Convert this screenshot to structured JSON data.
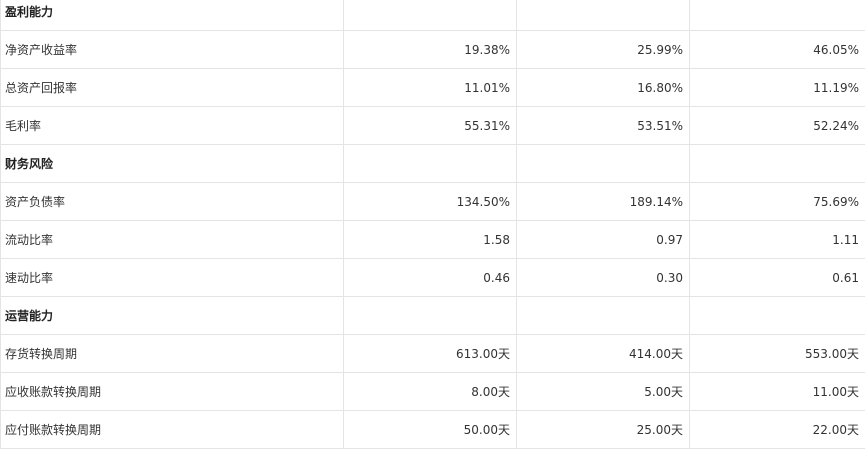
{
  "sections": [
    {
      "title": "盈利能力",
      "rows": [
        {
          "label": "净资产收益率",
          "values": [
            "19.38%",
            "25.99%",
            "46.05%"
          ]
        },
        {
          "label": "总资产回报率",
          "values": [
            "11.01%",
            "16.80%",
            "11.19%"
          ]
        },
        {
          "label": "毛利率",
          "values": [
            "55.31%",
            "53.51%",
            "52.24%"
          ]
        }
      ]
    },
    {
      "title": "财务风险",
      "rows": [
        {
          "label": "资产负债率",
          "values": [
            "134.50%",
            "189.14%",
            "75.69%"
          ]
        },
        {
          "label": "流动比率",
          "values": [
            "1.58",
            "0.97",
            "1.11"
          ]
        },
        {
          "label": "速动比率",
          "values": [
            "0.46",
            "0.30",
            "0.61"
          ]
        }
      ]
    },
    {
      "title": "运营能力",
      "rows": [
        {
          "label": "存货转换周期",
          "values": [
            "613.00天",
            "414.00天",
            "553.00天"
          ]
        },
        {
          "label": "应收账款转换周期",
          "values": [
            "8.00天",
            "5.00天",
            "11.00天"
          ]
        },
        {
          "label": "应付账款转换周期",
          "values": [
            "50.00天",
            "25.00天",
            "22.00天"
          ]
        }
      ]
    }
  ]
}
